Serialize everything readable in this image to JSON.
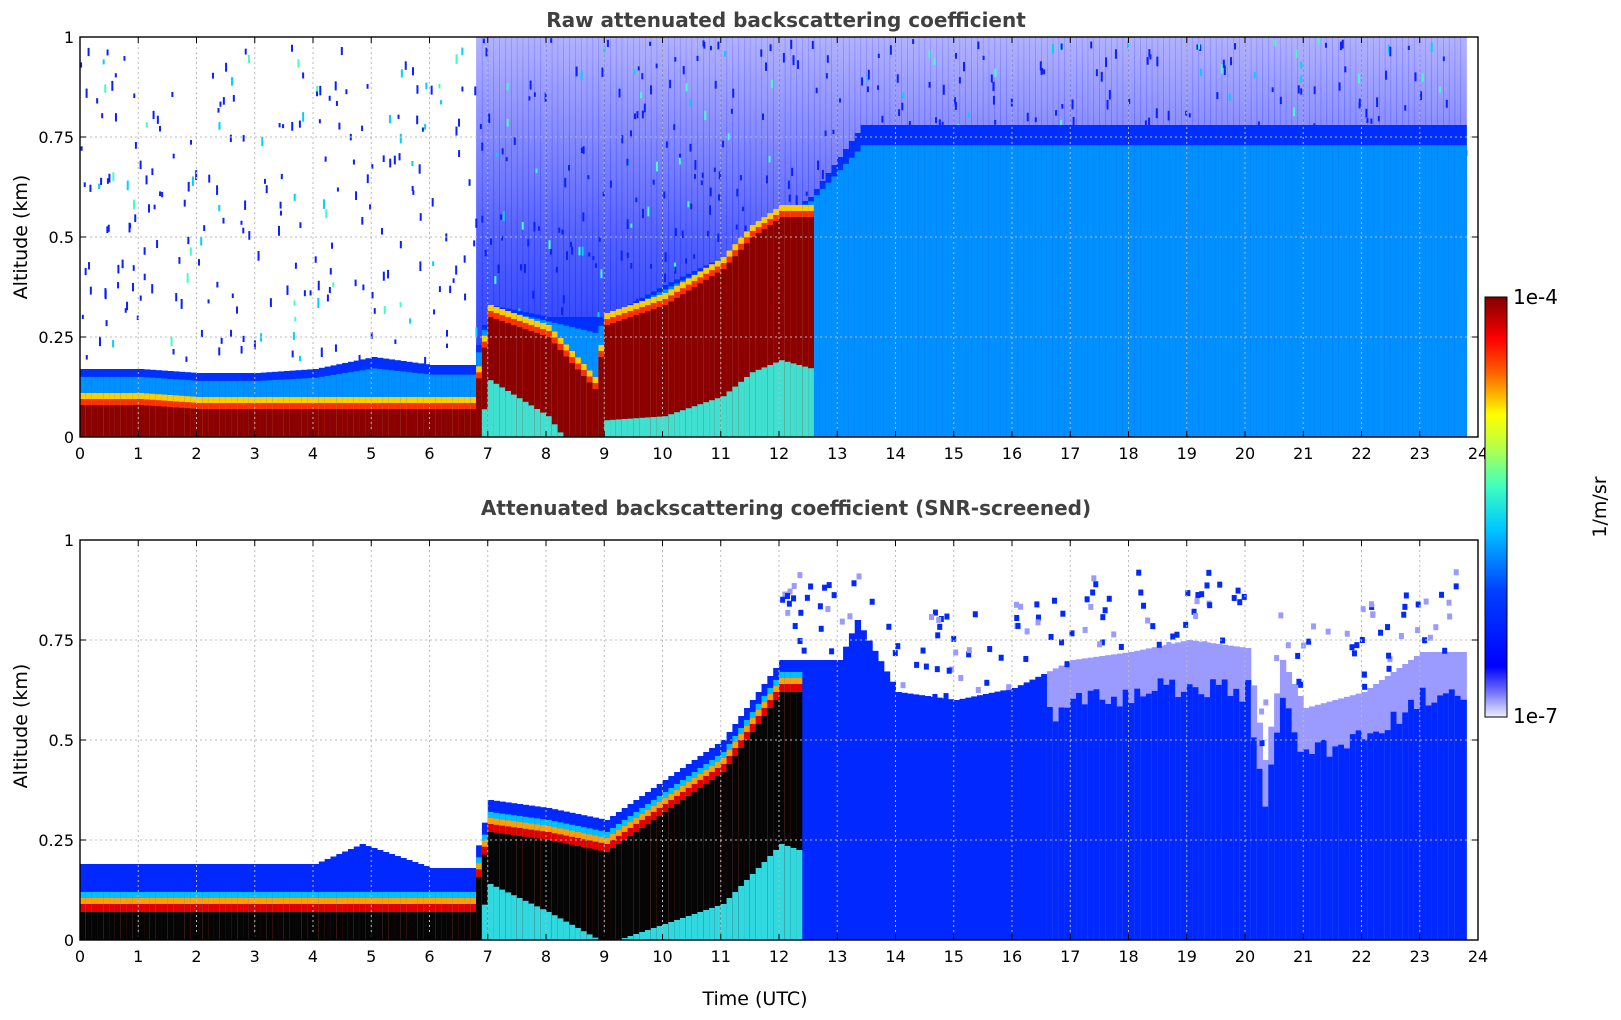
{
  "chart_data": [
    {
      "type": "heatmap",
      "title": "Raw attenuated backscattering coefficient",
      "xlabel": "",
      "ylabel": "Altitude (km)",
      "xlim": [
        0,
        24
      ],
      "ylim": [
        0,
        1
      ],
      "x_ticks": [
        "0",
        "1",
        "2",
        "3",
        "4",
        "5",
        "6",
        "7",
        "8",
        "9",
        "10",
        "11",
        "12",
        "13",
        "14",
        "15",
        "16",
        "17",
        "18",
        "19",
        "20",
        "21",
        "22",
        "23",
        "24"
      ],
      "y_ticks": [
        "0",
        "0.25",
        "0.5",
        "0.75",
        "1"
      ],
      "grid": true,
      "data_end_time": 23.8,
      "features": {
        "boundary_layer_top_km": [
          [
            0,
            0.17
          ],
          [
            1,
            0.17
          ],
          [
            2,
            0.16
          ],
          [
            3,
            0.16
          ],
          [
            4,
            0.17
          ],
          [
            5,
            0.2
          ],
          [
            6,
            0.18
          ],
          [
            6.7,
            0.18
          ],
          [
            7,
            0.33
          ],
          [
            8,
            0.3
          ],
          [
            9,
            0.3
          ],
          [
            10,
            0.38
          ],
          [
            11,
            0.45
          ],
          [
            12,
            0.55
          ],
          [
            12.5,
            0.6
          ],
          [
            13,
            0.7
          ],
          [
            13.4,
            0.78
          ]
        ],
        "high_signal_layer_top_km": [
          [
            0,
            0.08
          ],
          [
            1,
            0.08
          ],
          [
            2,
            0.07
          ],
          [
            3,
            0.07
          ],
          [
            4,
            0.07
          ],
          [
            5,
            0.07
          ],
          [
            6,
            0.07
          ],
          [
            6.7,
            0.07
          ],
          [
            7,
            0.3
          ],
          [
            8,
            0.25
          ],
          [
            8.8,
            0.12
          ],
          [
            9,
            0.28
          ],
          [
            10,
            0.33
          ],
          [
            11,
            0.42
          ],
          [
            11.5,
            0.5
          ],
          [
            12,
            0.55
          ]
        ],
        "noise_onset_time_utc": 6.8
      }
    },
    {
      "type": "heatmap",
      "title": "Attenuated backscattering coefficient (SNR-screened)",
      "xlabel": "Time (UTC)",
      "ylabel": "Altitude (km)",
      "xlim": [
        0,
        24
      ],
      "ylim": [
        0,
        1
      ],
      "x_ticks": [
        "0",
        "1",
        "2",
        "3",
        "4",
        "5",
        "6",
        "7",
        "8",
        "9",
        "10",
        "11",
        "12",
        "13",
        "14",
        "15",
        "16",
        "17",
        "18",
        "19",
        "20",
        "21",
        "22",
        "23",
        "24"
      ],
      "y_ticks": [
        "0",
        "0.25",
        "0.5",
        "0.75",
        "1"
      ],
      "grid": true,
      "data_end_time": 23.8,
      "features": {
        "mixed_layer_top_km": [
          [
            0,
            0.19
          ],
          [
            2,
            0.19
          ],
          [
            4,
            0.19
          ],
          [
            4.8,
            0.24
          ],
          [
            5.2,
            0.22
          ],
          [
            6,
            0.18
          ],
          [
            6.7,
            0.18
          ],
          [
            7,
            0.35
          ],
          [
            8,
            0.33
          ],
          [
            9,
            0.3
          ],
          [
            10,
            0.4
          ],
          [
            11,
            0.5
          ],
          [
            12,
            0.7
          ],
          [
            13,
            0.7
          ],
          [
            13.3,
            0.8
          ],
          [
            14,
            0.62
          ],
          [
            15,
            0.6
          ],
          [
            16,
            0.63
          ],
          [
            17,
            0.7
          ],
          [
            18,
            0.72
          ],
          [
            19,
            0.75
          ],
          [
            20,
            0.73
          ],
          [
            20.3,
            0.45
          ],
          [
            20.6,
            0.7
          ],
          [
            21,
            0.58
          ],
          [
            22,
            0.62
          ],
          [
            23,
            0.72
          ],
          [
            23.8,
            0.72
          ]
        ]
      }
    }
  ],
  "colorbar": {
    "max_label": "1e-4",
    "min_label": "1e-7",
    "unit_label": "1/m/sr",
    "scale": "log",
    "colormap": "jet-like (white/lavender at low end, dark red at high end)"
  }
}
